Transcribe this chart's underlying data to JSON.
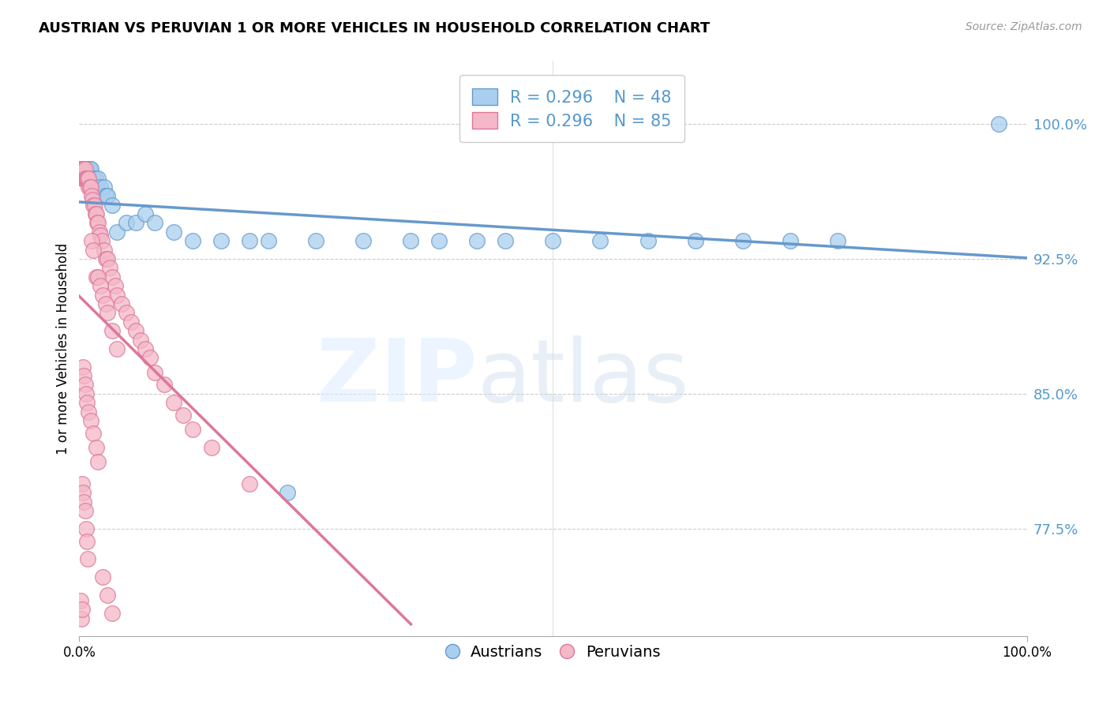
{
  "title": "AUSTRIAN VS PERUVIAN 1 OR MORE VEHICLES IN HOUSEHOLD CORRELATION CHART",
  "source": "Source: ZipAtlas.com",
  "ylabel": "1 or more Vehicles in Household",
  "ytick_vals": [
    0.775,
    0.85,
    0.925,
    1.0
  ],
  "ytick_labels": [
    "77.5%",
    "85.0%",
    "92.5%",
    "100.0%"
  ],
  "xtick_vals": [
    0.0,
    1.0
  ],
  "xtick_labels": [
    "0.0%",
    "100.0%"
  ],
  "xmin": 0.0,
  "xmax": 1.0,
  "ymin": 0.715,
  "ymax": 1.035,
  "legend_blue_R": "0.296",
  "legend_blue_N": "48",
  "legend_pink_R": "0.296",
  "legend_pink_N": "85",
  "blue_color": "#aacfee",
  "pink_color": "#f4b8c8",
  "blue_edge": "#6699cc",
  "pink_edge": "#dd7799",
  "trend_blue": "#6699cc",
  "trend_pink": "#dd7799",
  "aus_x": [
    0.004,
    0.005,
    0.006,
    0.007,
    0.008,
    0.009,
    0.01,
    0.011,
    0.012,
    0.013,
    0.014,
    0.015,
    0.016,
    0.017,
    0.018,
    0.019,
    0.02,
    0.022,
    0.024,
    0.026,
    0.028,
    0.03,
    0.035,
    0.04,
    0.05,
    0.06,
    0.07,
    0.08,
    0.1,
    0.12,
    0.15,
    0.18,
    0.2,
    0.25,
    0.3,
    0.35,
    0.38,
    0.42,
    0.45,
    0.5,
    0.55,
    0.6,
    0.65,
    0.7,
    0.75,
    0.8,
    0.97,
    0.22
  ],
  "aus_y": [
    0.975,
    0.975,
    0.975,
    0.97,
    0.975,
    0.97,
    0.975,
    0.975,
    0.975,
    0.97,
    0.97,
    0.97,
    0.965,
    0.97,
    0.965,
    0.965,
    0.97,
    0.965,
    0.96,
    0.965,
    0.96,
    0.96,
    0.955,
    0.94,
    0.945,
    0.945,
    0.95,
    0.945,
    0.94,
    0.935,
    0.935,
    0.935,
    0.935,
    0.935,
    0.935,
    0.935,
    0.935,
    0.935,
    0.935,
    0.935,
    0.935,
    0.935,
    0.935,
    0.935,
    0.935,
    0.935,
    1.0,
    0.795
  ],
  "peru_x": [
    0.001,
    0.002,
    0.003,
    0.003,
    0.004,
    0.004,
    0.005,
    0.005,
    0.005,
    0.006,
    0.006,
    0.007,
    0.007,
    0.008,
    0.008,
    0.009,
    0.01,
    0.01,
    0.011,
    0.012,
    0.013,
    0.014,
    0.015,
    0.016,
    0.017,
    0.018,
    0.019,
    0.02,
    0.021,
    0.022,
    0.024,
    0.026,
    0.028,
    0.03,
    0.032,
    0.035,
    0.038,
    0.04,
    0.045,
    0.05,
    0.055,
    0.06,
    0.065,
    0.07,
    0.075,
    0.08,
    0.09,
    0.1,
    0.11,
    0.12,
    0.013,
    0.015,
    0.018,
    0.02,
    0.022,
    0.025,
    0.028,
    0.03,
    0.035,
    0.04,
    0.004,
    0.005,
    0.006,
    0.007,
    0.008,
    0.01,
    0.012,
    0.015,
    0.018,
    0.02,
    0.003,
    0.004,
    0.005,
    0.006,
    0.007,
    0.008,
    0.009,
    0.025,
    0.03,
    0.035,
    0.001,
    0.002,
    0.003,
    0.14,
    0.18
  ],
  "peru_y": [
    0.975,
    0.975,
    0.97,
    0.975,
    0.97,
    0.975,
    0.975,
    0.97,
    0.97,
    0.97,
    0.975,
    0.97,
    0.97,
    0.97,
    0.97,
    0.97,
    0.965,
    0.97,
    0.965,
    0.965,
    0.96,
    0.958,
    0.955,
    0.955,
    0.95,
    0.95,
    0.945,
    0.945,
    0.94,
    0.938,
    0.935,
    0.93,
    0.925,
    0.925,
    0.92,
    0.915,
    0.91,
    0.905,
    0.9,
    0.895,
    0.89,
    0.885,
    0.88,
    0.875,
    0.87,
    0.862,
    0.855,
    0.845,
    0.838,
    0.83,
    0.935,
    0.93,
    0.915,
    0.915,
    0.91,
    0.905,
    0.9,
    0.895,
    0.885,
    0.875,
    0.865,
    0.86,
    0.855,
    0.85,
    0.845,
    0.84,
    0.835,
    0.828,
    0.82,
    0.812,
    0.8,
    0.795,
    0.79,
    0.785,
    0.775,
    0.768,
    0.758,
    0.748,
    0.738,
    0.728,
    0.735,
    0.725,
    0.73,
    0.82,
    0.8
  ]
}
